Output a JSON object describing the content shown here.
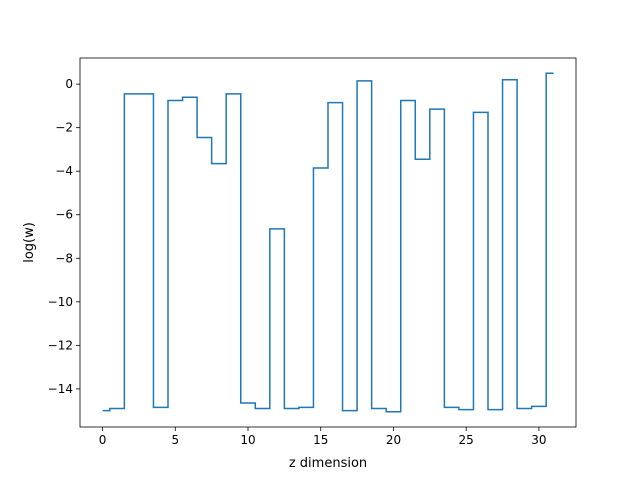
{
  "colors": {
    "line": "#1f77b4",
    "axes": "#000000",
    "background": "#ffffff"
  },
  "chart_data": {
    "type": "line",
    "drawstyle": "steps-mid",
    "title": "",
    "xlabel": "z dimension",
    "ylabel": "log(w)",
    "xlim": [
      -1.55,
      32.55
    ],
    "ylim": [
      -15.75,
      1.2
    ],
    "xticks": [
      0,
      5,
      10,
      15,
      20,
      25,
      30
    ],
    "xtick_labels": [
      "0",
      "5",
      "10",
      "15",
      "20",
      "25",
      "30"
    ],
    "yticks": [
      0,
      -2,
      -4,
      -6,
      -8,
      -10,
      -12,
      -14
    ],
    "ytick_labels": [
      "0",
      "−2",
      "−4",
      "−6",
      "−8",
      "−10",
      "−12",
      "−14"
    ],
    "grid": false,
    "series": [
      {
        "x": [
          0,
          1,
          2,
          3,
          4,
          5,
          6,
          7,
          8,
          9,
          10,
          11,
          12,
          13,
          14,
          15,
          16,
          17,
          18,
          19,
          20,
          21,
          22,
          23,
          24,
          25,
          26,
          27,
          28,
          29,
          30,
          31
        ],
        "values": [
          -15.0,
          -14.9,
          -0.45,
          -0.45,
          -14.85,
          -0.75,
          -0.6,
          -2.45,
          -3.65,
          -0.45,
          -14.65,
          -14.9,
          -6.65,
          -14.9,
          -14.85,
          -3.85,
          -0.85,
          -15.0,
          0.15,
          -14.9,
          -15.05,
          -0.75,
          -3.45,
          -1.15,
          -14.85,
          -14.95,
          -1.3,
          -14.95,
          0.2,
          -14.9,
          -14.8,
          0.5
        ]
      }
    ]
  }
}
